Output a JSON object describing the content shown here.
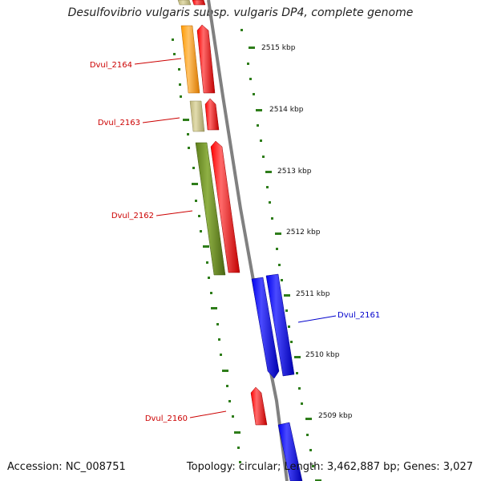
{
  "title": "Desulfovibrio vulgaris subsp. vulgaris DP4, complete genome",
  "footer": {
    "accession": "Accession: NC_008751",
    "topology": "Topology: circular; Length: 3,462,887 bp; Genes: 3,027"
  },
  "ticks": [
    {
      "label": "2515 kbp",
      "kbp": 2515
    },
    {
      "label": "2514 kbp",
      "kbp": 2514
    },
    {
      "label": "2513 kbp",
      "kbp": 2513
    },
    {
      "label": "2512 kbp",
      "kbp": 2512
    },
    {
      "label": "2511 kbp",
      "kbp": 2511
    },
    {
      "label": "2510 kbp",
      "kbp": 2510
    },
    {
      "label": "2509 kbp",
      "kbp": 2509
    }
  ],
  "genes": [
    {
      "label": "Dvul_2164",
      "color": "#cc0000"
    },
    {
      "label": "Dvul_2163",
      "color": "#cc0000"
    },
    {
      "label": "Dvul_2162",
      "color": "#cc0000"
    },
    {
      "label": "Dvul_2161",
      "color": "#0000cc"
    },
    {
      "label": "Dvul_2160",
      "color": "#cc0000"
    }
  ],
  "colors": {
    "backbone": "#808080",
    "forward_cds": "#ff0000",
    "reverse_cds": "#0000ff",
    "tick": "#2e7d1a",
    "orange_feature": "#ff9a00",
    "khaki_feature": "#c8c08a",
    "olive_feature": "#6b8e23"
  }
}
